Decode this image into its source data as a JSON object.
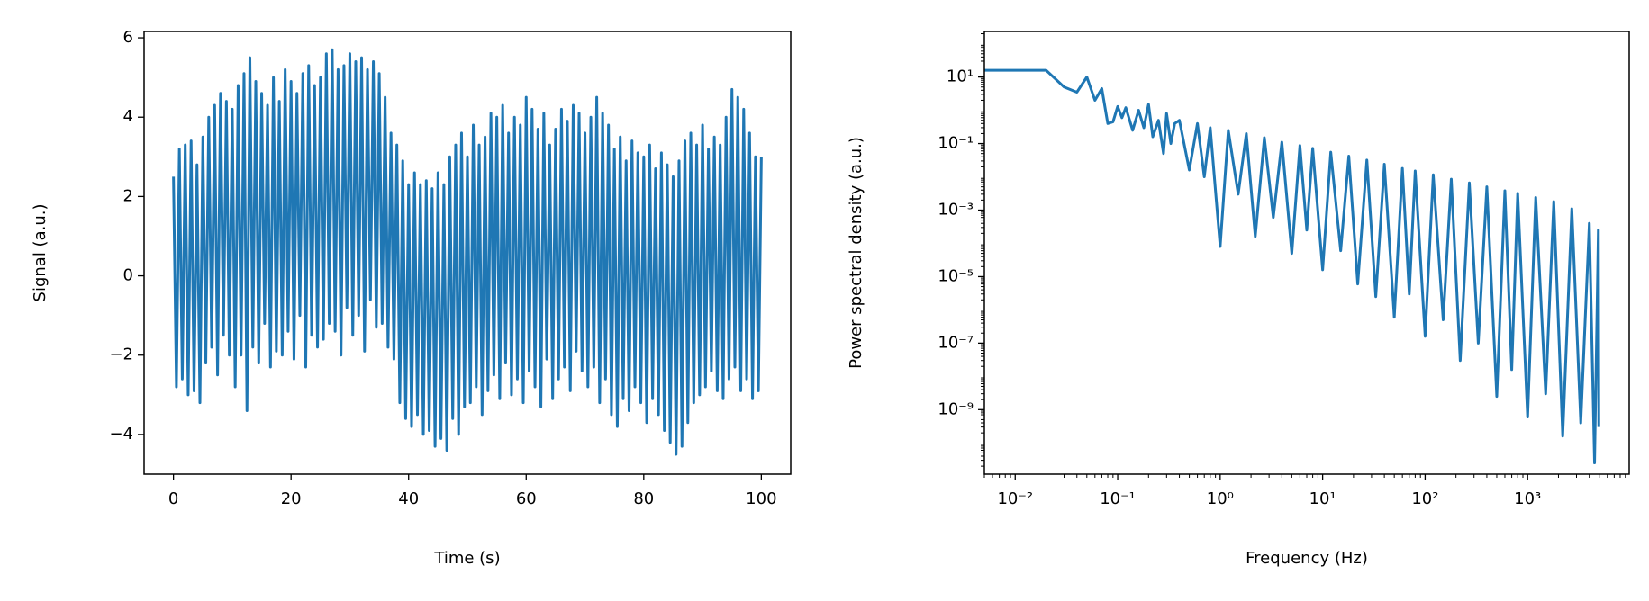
{
  "chart_data": [
    {
      "type": "line",
      "xlabel": "Time (s)",
      "ylabel": "Signal (a.u.)",
      "color": "#1f77b4",
      "xscale": "linear",
      "yscale": "linear",
      "xlim": [
        -5,
        105
      ],
      "ylim": [
        -5,
        6.16
      ],
      "xticks": [
        0,
        20,
        40,
        60,
        80,
        100
      ],
      "yticks": [
        {
          "value": -4,
          "label": "−4"
        },
        {
          "value": -2,
          "label": "−2"
        },
        0,
        2,
        4,
        6
      ],
      "x": [
        0,
        0.5,
        1,
        1.5,
        2,
        2.5,
        3,
        3.5,
        4,
        4.5,
        5,
        5.5,
        6,
        6.5,
        7,
        7.5,
        8,
        8.5,
        9,
        9.5,
        10,
        10.5,
        11,
        11.5,
        12,
        12.5,
        13,
        13.5,
        14,
        14.5,
        15,
        15.5,
        16,
        16.5,
        17,
        17.5,
        18,
        18.5,
        19,
        19.5,
        20,
        20.5,
        21,
        21.5,
        22,
        22.5,
        23,
        23.5,
        24,
        24.5,
        25,
        25.5,
        26,
        26.5,
        27,
        27.5,
        28,
        28.5,
        29,
        29.5,
        30,
        30.5,
        31,
        31.5,
        32,
        32.5,
        33,
        33.5,
        34,
        34.5,
        35,
        35.5,
        36,
        36.5,
        37,
        37.5,
        38,
        38.5,
        39,
        39.5,
        40,
        40.5,
        41,
        41.5,
        42,
        42.5,
        43,
        43.5,
        44,
        44.5,
        45,
        45.5,
        46,
        46.5,
        47,
        47.5,
        48,
        48.5,
        49,
        49.5,
        50,
        50.5,
        51,
        51.5,
        52,
        52.5,
        53,
        53.5,
        54,
        54.5,
        55,
        55.5,
        56,
        56.5,
        57,
        57.5,
        58,
        58.5,
        59,
        59.5,
        60,
        60.5,
        61,
        61.5,
        62,
        62.5,
        63,
        63.5,
        64,
        64.5,
        65,
        65.5,
        66,
        66.5,
        67,
        67.5,
        68,
        68.5,
        69,
        69.5,
        70,
        70.5,
        71,
        71.5,
        72,
        72.5,
        73,
        73.5,
        74,
        74.5,
        75,
        75.5,
        76,
        76.5,
        77,
        77.5,
        78,
        78.5,
        79,
        79.5,
        80,
        80.5,
        81,
        81.5,
        82,
        82.5,
        83,
        83.5,
        84,
        84.5,
        85,
        85.5,
        86,
        86.5,
        87,
        87.5,
        88,
        88.5,
        89,
        89.5,
        90,
        90.5,
        91,
        91.5,
        92,
        92.5,
        93,
        93.5,
        94,
        94.5,
        95,
        95.5,
        96,
        96.5,
        97,
        97.5,
        98,
        98.5,
        99,
        99.5,
        100
      ],
      "values": [
        2.5,
        -2.8,
        3.2,
        -2.6,
        3.3,
        -3.0,
        3.4,
        -2.9,
        2.8,
        -3.2,
        3.5,
        -2.2,
        4.0,
        -1.8,
        4.3,
        -2.5,
        4.6,
        -1.5,
        4.4,
        -2.0,
        4.2,
        -2.8,
        4.8,
        -2.0,
        5.1,
        -3.4,
        5.5,
        -1.8,
        4.9,
        -2.2,
        4.6,
        -1.2,
        4.3,
        -2.3,
        5.0,
        -1.9,
        4.4,
        -2.0,
        5.2,
        -1.4,
        4.9,
        -2.1,
        4.6,
        -1.0,
        5.1,
        -2.3,
        5.3,
        -1.5,
        4.8,
        -1.8,
        5.0,
        -1.6,
        5.6,
        -1.2,
        5.7,
        -1.4,
        5.2,
        -2.0,
        5.3,
        -0.8,
        5.6,
        -1.5,
        5.4,
        -1.0,
        5.5,
        -1.9,
        5.2,
        -0.6,
        5.4,
        -1.3,
        5.1,
        -1.2,
        4.5,
        -1.8,
        3.6,
        -2.1,
        3.3,
        -3.2,
        2.9,
        -3.6,
        2.3,
        -3.8,
        2.6,
        -3.5,
        2.3,
        -4.0,
        2.4,
        -3.9,
        2.2,
        -4.3,
        2.6,
        -4.1,
        2.3,
        -4.4,
        3.0,
        -3.6,
        3.3,
        -4.0,
        3.6,
        -3.3,
        3.0,
        -3.2,
        3.8,
        -2.8,
        3.3,
        -3.5,
        3.5,
        -2.9,
        4.1,
        -2.5,
        4.0,
        -3.1,
        4.3,
        -2.2,
        3.6,
        -3.0,
        4.0,
        -2.6,
        3.8,
        -3.2,
        4.5,
        -2.4,
        4.2,
        -2.8,
        3.7,
        -3.3,
        4.1,
        -2.1,
        3.3,
        -3.1,
        3.7,
        -2.6,
        4.2,
        -2.3,
        3.9,
        -2.9,
        4.3,
        -1.9,
        4.1,
        -2.4,
        3.6,
        -2.8,
        4.0,
        -2.3,
        4.5,
        -3.2,
        4.1,
        -2.6,
        3.8,
        -3.5,
        3.2,
        -3.8,
        3.5,
        -3.1,
        2.9,
        -3.4,
        3.4,
        -2.8,
        3.1,
        -3.2,
        3.0,
        -3.7,
        3.3,
        -3.1,
        2.7,
        -3.5,
        3.1,
        -3.9,
        2.8,
        -4.2,
        2.5,
        -4.5,
        2.9,
        -4.3,
        3.4,
        -3.7,
        3.6,
        -3.2,
        3.3,
        -3.0,
        3.8,
        -2.8,
        3.2,
        -2.4,
        3.5,
        -2.9,
        3.3,
        -3.1,
        4.0,
        -2.6,
        4.7,
        -2.3,
        4.5,
        -2.9,
        4.2,
        -2.6,
        3.6,
        -3.1,
        3.0,
        -2.9,
        3.0
      ]
    },
    {
      "type": "line",
      "xlabel": "Frequency (Hz)",
      "ylabel": "Power spectral density (a.u.)",
      "color": "#1f77b4",
      "xscale": "log",
      "yscale": "log",
      "minor_ticks": true,
      "xlim": [
        0.005,
        9800
      ],
      "ylim": [
        1.15e-11,
        234
      ],
      "xticks": [
        {
          "value": 0.01,
          "label": "10⁻²"
        },
        {
          "value": 0.1,
          "label": "10⁻¹"
        },
        {
          "value": 1,
          "label": "10⁰"
        },
        {
          "value": 10,
          "label": "10¹"
        },
        {
          "value": 100,
          "label": "10²"
        },
        {
          "value": 1000,
          "label": "10³"
        }
      ],
      "yticks": [
        {
          "value": 1e-09,
          "label": "10⁻⁹"
        },
        {
          "value": 1e-07,
          "label": "10⁻⁷"
        },
        {
          "value": 1e-05,
          "label": "10⁻⁵"
        },
        {
          "value": 0.001,
          "label": "10⁻³"
        },
        {
          "value": 0.1,
          "label": "10⁻¹"
        },
        {
          "value": 10,
          "label": "10¹"
        }
      ],
      "x": [
        0.005,
        0.01,
        0.02,
        0.03,
        0.04,
        0.05,
        0.06,
        0.07,
        0.08,
        0.09,
        0.1,
        0.11,
        0.12,
        0.14,
        0.16,
        0.18,
        0.2,
        0.22,
        0.25,
        0.28,
        0.3,
        0.33,
        0.36,
        0.4,
        0.5,
        0.6,
        0.7,
        0.8,
        1,
        1.2,
        1.5,
        1.8,
        2.2,
        2.7,
        3.3,
        4,
        5,
        6,
        7,
        8,
        10,
        12,
        15,
        18,
        22,
        27,
        33,
        40,
        50,
        60,
        70,
        80,
        100,
        120,
        150,
        180,
        220,
        270,
        330,
        400,
        500,
        600,
        700,
        800,
        1000,
        1200,
        1500,
        1800,
        2200,
        2700,
        3300,
        4000,
        4500,
        4900,
        4950
      ],
      "values": [
        16,
        16,
        16,
        5,
        3.5,
        10,
        2,
        4.5,
        0.4,
        0.45,
        1.3,
        0.6,
        1.2,
        0.25,
        1.0,
        0.3,
        1.5,
        0.16,
        0.5,
        0.05,
        0.8,
        0.1,
        0.4,
        0.5,
        0.016,
        0.4,
        0.01,
        0.3,
        8e-05,
        0.25,
        0.003,
        0.2,
        0.00016,
        0.15,
        0.0006,
        0.11,
        5e-05,
        0.087,
        0.00025,
        0.072,
        1.6e-05,
        0.055,
        6e-05,
        0.042,
        6e-06,
        0.032,
        2.5e-06,
        0.024,
        6e-07,
        0.018,
        3e-06,
        0.015,
        1.6e-07,
        0.0115,
        5e-07,
        0.0085,
        3e-08,
        0.0066,
        1e-07,
        0.005,
        2.5e-09,
        0.0038,
        1.6e-08,
        0.0032,
        6e-10,
        0.0024,
        3e-09,
        0.0018,
        1.6e-10,
        0.0011,
        4e-10,
        0.0004,
        2.5e-11,
        0.00025,
        3e-10
      ]
    }
  ]
}
